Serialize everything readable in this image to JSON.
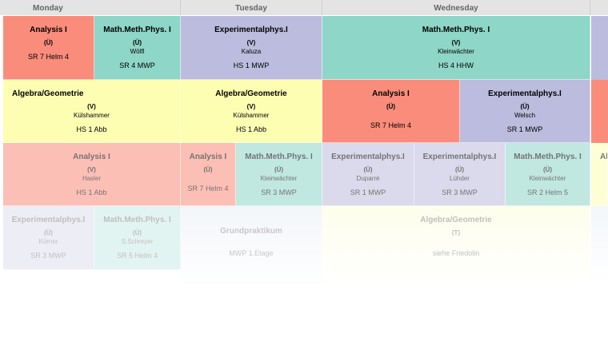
{
  "days": {
    "monday": "Monday",
    "tuesday": "Tuesday",
    "wednesday": "Wednesday"
  },
  "slots": [
    {
      "title": "Analysis I",
      "kind": "(Ü)",
      "person": "",
      "room": "SR 7 Helm 4",
      "color": "#fa8c7c"
    },
    {
      "title": "Math.Meth.Phys. I",
      "kind": "(Ü)",
      "person": "Wölfl",
      "room": "SR 4 MWP",
      "color": "#8ed6c8"
    },
    {
      "title": "Experimentalphys.I",
      "kind": "(V)",
      "person": "Kaluza",
      "room": "HS 1 MWP",
      "color": "#bcbcde"
    },
    {
      "title": "Math.Meth.Phys. I",
      "kind": "(V)",
      "person": "Kleinwächter",
      "room": "HS 4 HHW",
      "color": "#8ed6c8"
    },
    {
      "title": "Algebra/Geometrie",
      "kind": "(V)",
      "person": "Külshammer",
      "room": "HS 1 Abb",
      "color": "#fefeb3"
    },
    {
      "title": "Algebra/Geometrie",
      "kind": "(V)",
      "person": "Külshammer",
      "room": "HS 1 Abb",
      "color": "#fefeb3"
    },
    {
      "title": "Analysis I",
      "kind": "(Ü)",
      "person": "",
      "room": "SR 7 Helm 4",
      "color": "#fa8c7c"
    },
    {
      "title": "Experimentalphys.I",
      "kind": "(Ü)",
      "person": "Welsch",
      "room": "SR 1 MWP",
      "color": "#bcbcde"
    },
    {
      "title": "Analysis I",
      "kind": "(V)",
      "person": "Hasler",
      "room": "HS 1 Abb",
      "color": "#fa8c7c"
    },
    {
      "title": "Analysis I",
      "kind": "(Ü)",
      "person": "",
      "room": "SR 7 Helm 4",
      "color": "#fa8c7c"
    },
    {
      "title": "Math.Meth.Phys. I",
      "kind": "(Ü)",
      "person": "Kleinwächter",
      "room": "SR 3 MWP",
      "color": "#8ed6c8"
    },
    {
      "title": "Experimentalphys.I",
      "kind": "(Ü)",
      "person": "Duparré",
      "room": "SR 1 MWP",
      "color": "#bcbcde"
    },
    {
      "title": "Experimentalphys.I",
      "kind": "(Ü)",
      "person": "Lühder",
      "room": "SR 3 MWP",
      "color": "#bcbcde"
    },
    {
      "title": "Math.Meth.Phys. I",
      "kind": "(Ü)",
      "person": "Kleinwächter",
      "room": "SR 2 Helm 5",
      "color": "#8ed6c8"
    },
    {
      "title": "Experimentalphys.I",
      "kind": "(Ü)",
      "person": "Körner",
      "room": "SR 3 MWP",
      "color": "#bcbcde"
    },
    {
      "title": "Math.Meth.Phys. I",
      "kind": "(Ü)",
      "person": "S.Schreyer",
      "room": "SR 5 Helm 4",
      "color": "#8ed6c8"
    },
    {
      "title": "Grundpraktikum",
      "kind": "",
      "person": "",
      "room": "MWP 1.Etage",
      "color": "#c8daea"
    },
    {
      "title": "Algebra/Geometrie",
      "kind": "(T)",
      "person": "",
      "room": "siehe Friedolin",
      "color": "#fefeb3"
    }
  ],
  "partial_label": "Al"
}
